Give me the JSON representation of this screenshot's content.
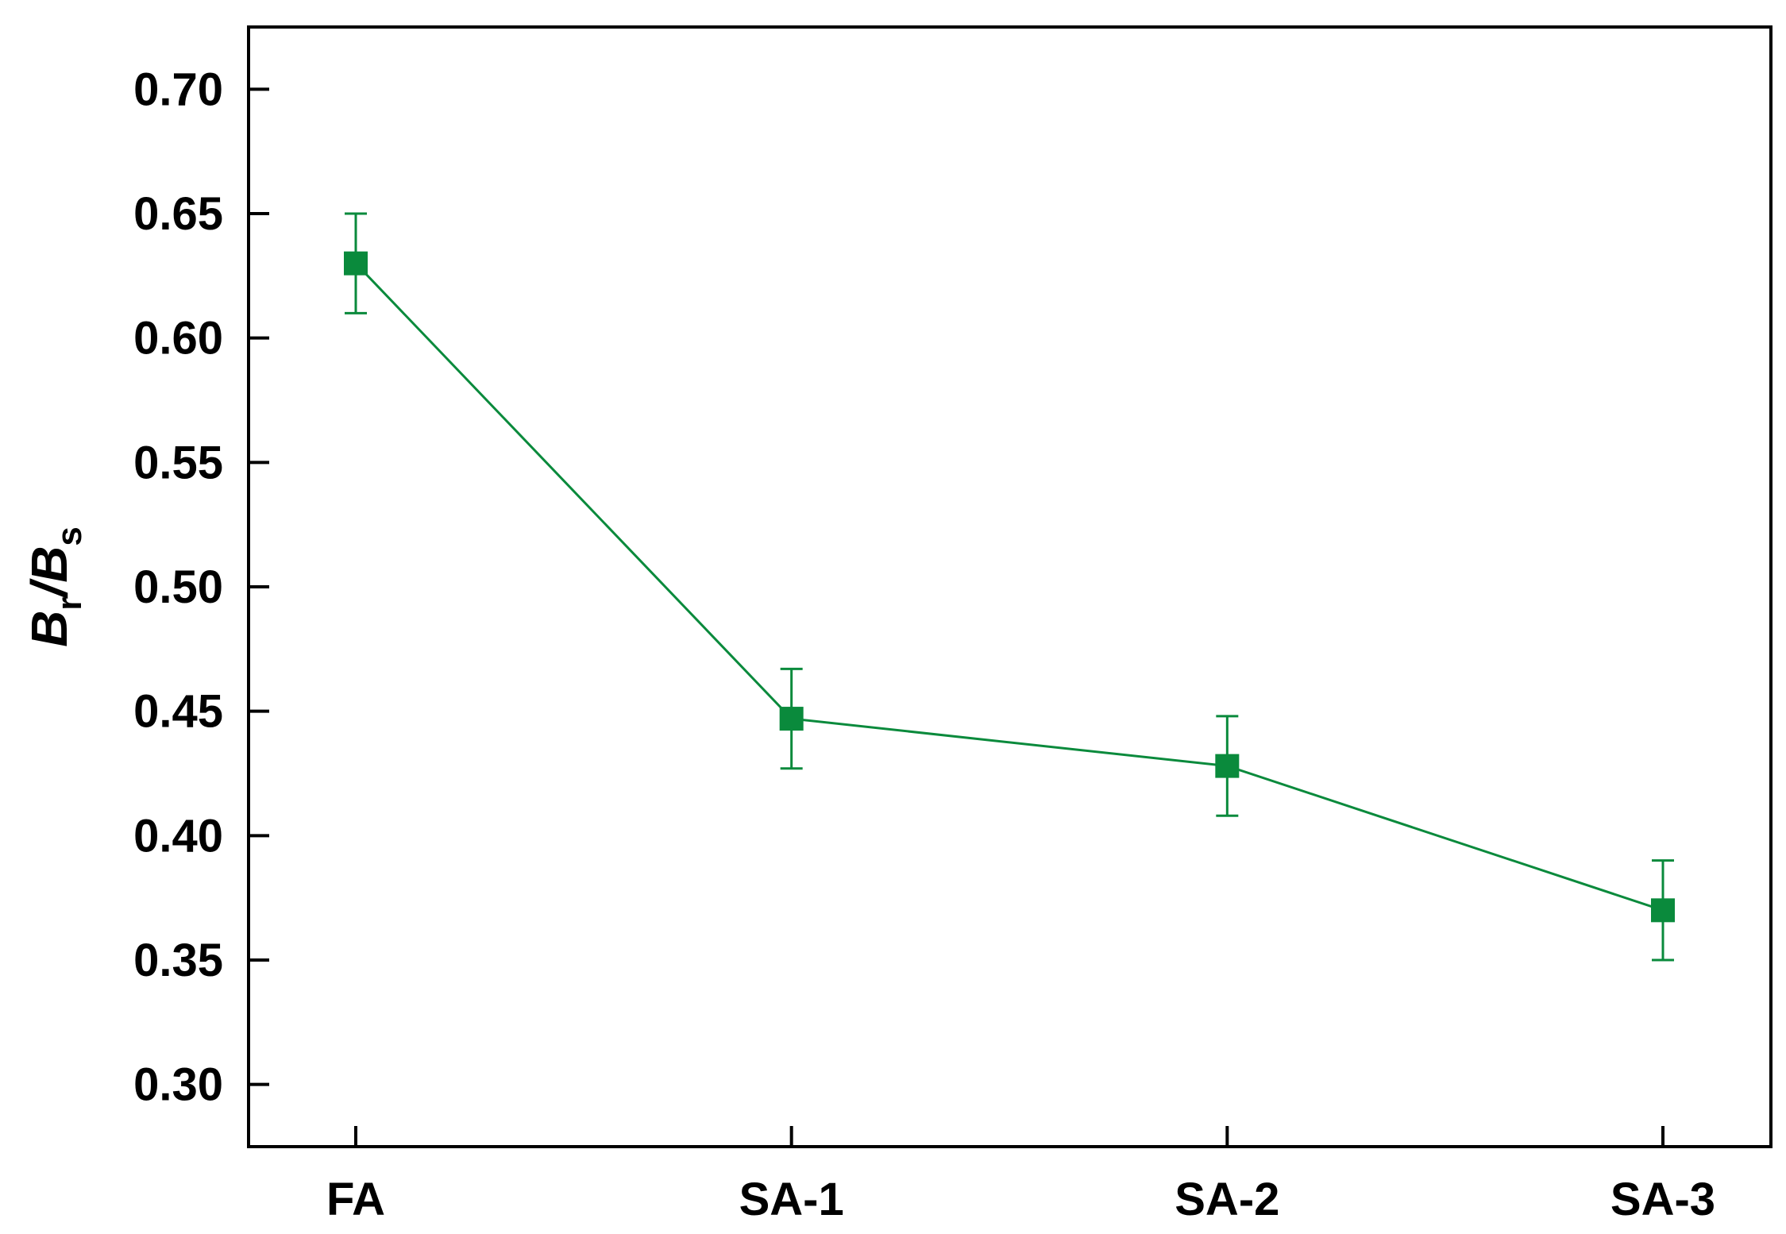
{
  "chart_data": {
    "type": "line",
    "categories": [
      "FA",
      "SA-1",
      "SA-2",
      "SA-3"
    ],
    "series": [
      {
        "values": [
          0.63,
          0.447,
          0.428,
          0.37
        ],
        "errors": [
          0.02,
          0.02,
          0.02,
          0.02
        ],
        "color": "#0a8a3c",
        "marker": "square"
      }
    ],
    "ylabel": {
      "B1": "B",
      "sub1": "r",
      "slash": "/",
      "B2": "B",
      "sub2": "s"
    },
    "ylim": [
      0.275,
      0.725
    ],
    "yticks": [
      0.3,
      0.35,
      0.4,
      0.45,
      0.5,
      0.55,
      0.6,
      0.65,
      0.7
    ],
    "ytick_labels": [
      "0.30",
      "0.35",
      "0.40",
      "0.45",
      "0.50",
      "0.55",
      "0.60",
      "0.65",
      "0.70"
    ],
    "grid": false,
    "legend": "none"
  }
}
